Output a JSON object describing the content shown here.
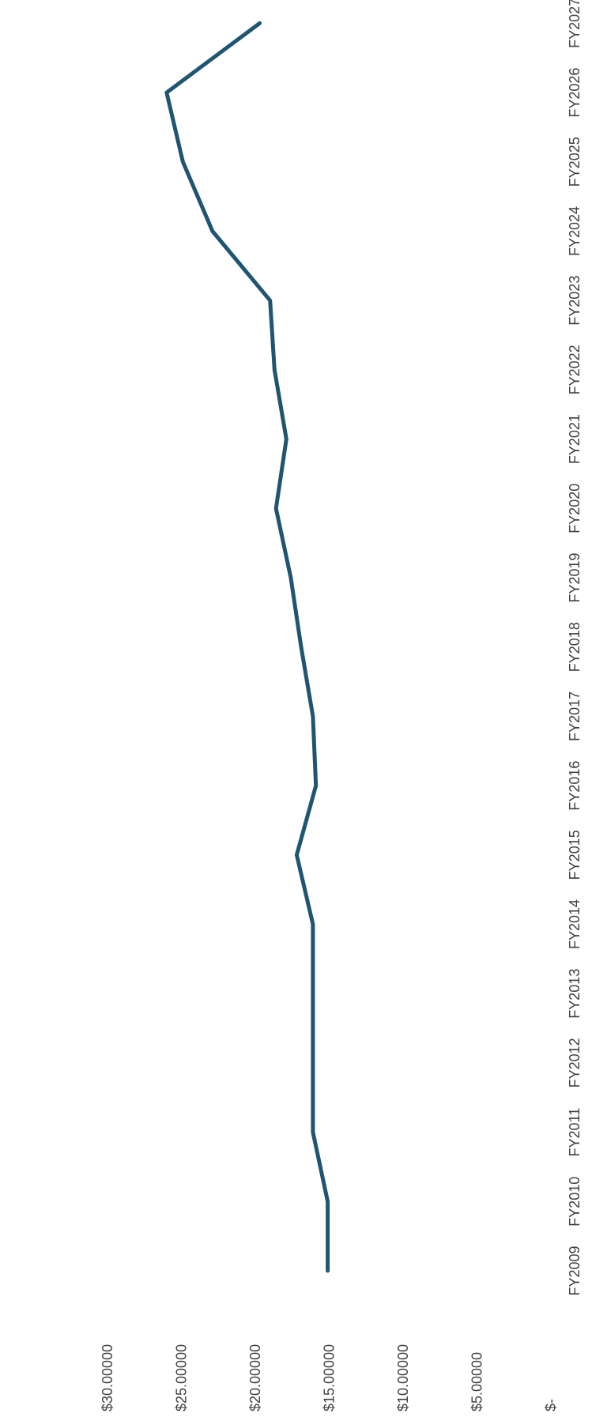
{
  "chart_data": {
    "type": "line",
    "orientation": "rotated-90-clockwise",
    "title": "",
    "xlabel": "",
    "ylabel": "",
    "x": [
      "FY2009",
      "FY2010",
      "FY2011",
      "FY2012",
      "FY2013",
      "FY2014",
      "FY2015",
      "FY2016",
      "FY2017",
      "FY2018",
      "FY2019",
      "FY2020",
      "FY2021",
      "FY2022",
      "FY2023",
      "FY2024",
      "FY2025",
      "FY2026",
      "FY2027"
    ],
    "series": [
      {
        "values": [
          15.1,
          15.1,
          16.1,
          16.1,
          16.1,
          16.1,
          17.2,
          15.9,
          16.1,
          16.9,
          17.6,
          18.6,
          17.9,
          18.7,
          19.0,
          22.9,
          24.9,
          26.0,
          19.7
        ]
      }
    ],
    "y_tick_labels": [
      "$-",
      "$5.00000",
      "$10.00000",
      "$15.00000",
      "$20.00000",
      "$25.00000",
      "$30.00000"
    ],
    "y_tick_values": [
      0,
      5,
      10,
      15,
      20,
      25,
      30
    ],
    "ylim": [
      0,
      30
    ],
    "grid": false,
    "legend": "none",
    "line_color": "#1f5572"
  }
}
